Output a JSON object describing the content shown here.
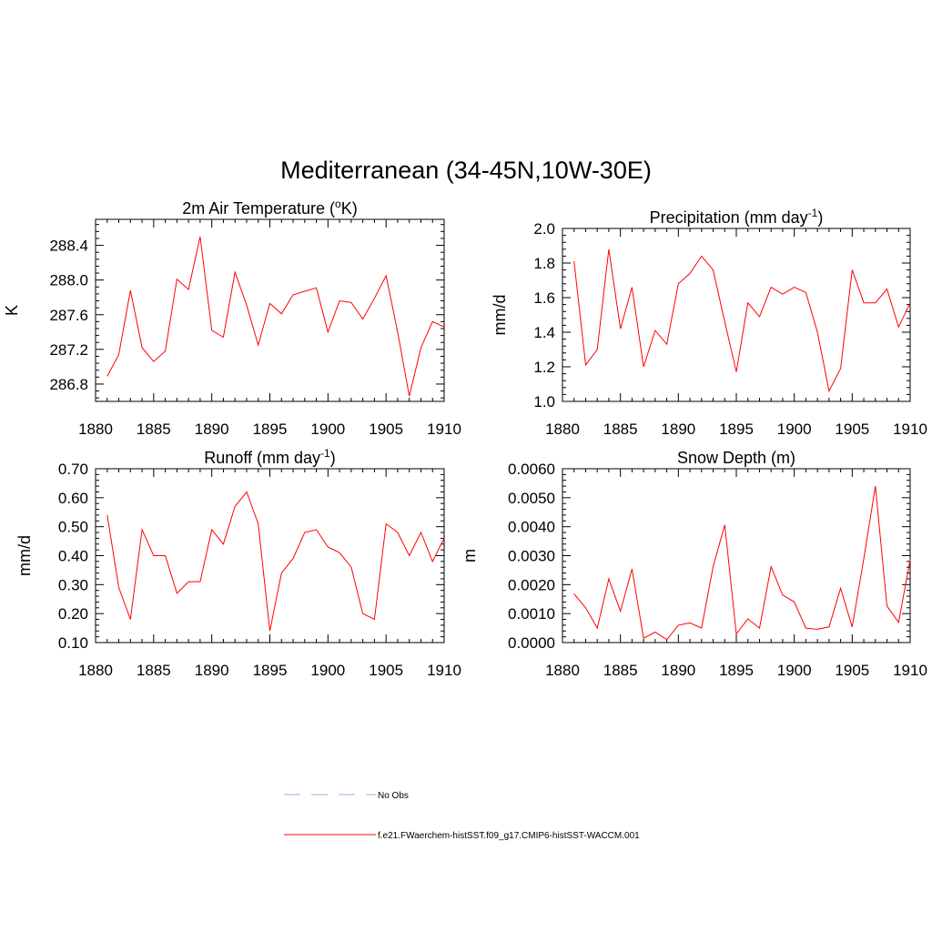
{
  "figure": {
    "title": "Mediterranean (34-45N,10W-30E)"
  },
  "legend": {
    "placement": "bottom-center",
    "items": [
      {
        "label": "No Obs",
        "color": "#a9a9e0",
        "style": "dashed"
      },
      {
        "label": "f.e21.FWaerchem-histSST.f09_g17.CMIP6-histSST-WACCM.001",
        "color": "#ff0000",
        "style": "solid"
      }
    ]
  },
  "chart_data": [
    {
      "type": "line",
      "title": "2m Air Temperature (",
      "title_sup": "o",
      "title_tail": "K)",
      "ylabel": "K",
      "xlim": [
        1880,
        1910
      ],
      "ylim": [
        286.6,
        288.7
      ],
      "xticks": [
        "1880",
        "1885",
        "1890",
        "1895",
        "1900",
        "1905",
        "1910"
      ],
      "yticks": [
        "286.8",
        "287.2",
        "287.6",
        "288.0",
        "288.4"
      ],
      "series": [
        {
          "color": "#ff0000",
          "x": [
            1881,
            1882,
            1883,
            1884,
            1885,
            1886,
            1887,
            1888,
            1889,
            1890,
            1891,
            1892,
            1893,
            1894,
            1895,
            1896,
            1897,
            1898,
            1899,
            1900,
            1901,
            1902,
            1903,
            1904,
            1905,
            1906,
            1907,
            1908,
            1909,
            1910
          ],
          "y": [
            286.89,
            287.14,
            287.88,
            287.22,
            287.06,
            287.18,
            288.01,
            287.89,
            288.5,
            287.42,
            287.34,
            288.09,
            287.71,
            287.25,
            287.73,
            287.61,
            287.83,
            287.87,
            287.91,
            287.4,
            287.76,
            287.74,
            287.55,
            287.79,
            288.05,
            287.4,
            286.66,
            287.22,
            287.52,
            287.46
          ]
        }
      ]
    },
    {
      "type": "line",
      "title": "Precipitation (mm day",
      "title_sup": "-1",
      "title_tail": ")",
      "ylabel": "mm/d",
      "xlim": [
        1880,
        1910
      ],
      "ylim": [
        1.0,
        2.0
      ],
      "xticks": [
        "1880",
        "1885",
        "1890",
        "1895",
        "1900",
        "1905",
        "1910"
      ],
      "yticks": [
        "1.0",
        "1.2",
        "1.4",
        "1.6",
        "1.8",
        "2.0"
      ],
      "series": [
        {
          "color": "#ff0000",
          "x": [
            1881,
            1882,
            1883,
            1884,
            1885,
            1886,
            1887,
            1888,
            1889,
            1890,
            1891,
            1892,
            1893,
            1894,
            1895,
            1896,
            1897,
            1898,
            1899,
            1900,
            1901,
            1902,
            1903,
            1904,
            1905,
            1906,
            1907,
            1908,
            1909,
            1910
          ],
          "y": [
            1.81,
            1.21,
            1.3,
            1.88,
            1.42,
            1.66,
            1.2,
            1.41,
            1.33,
            1.68,
            1.74,
            1.84,
            1.76,
            1.46,
            1.17,
            1.57,
            1.49,
            1.66,
            1.62,
            1.66,
            1.63,
            1.4,
            1.06,
            1.19,
            1.76,
            1.57,
            1.57,
            1.65,
            1.43,
            1.57
          ]
        }
      ]
    },
    {
      "type": "line",
      "title": "Runoff (mm day",
      "title_sup": "-1",
      "title_tail": ")",
      "ylabel": "mm/d",
      "xlim": [
        1880,
        1910
      ],
      "ylim": [
        0.1,
        0.7
      ],
      "xticks": [
        "1880",
        "1885",
        "1890",
        "1895",
        "1900",
        "1905",
        "1910"
      ],
      "yticks": [
        "0.10",
        "0.20",
        "0.30",
        "0.40",
        "0.50",
        "0.60",
        "0.70"
      ],
      "series": [
        {
          "color": "#ff0000",
          "x": [
            1881,
            1882,
            1883,
            1884,
            1885,
            1886,
            1887,
            1888,
            1889,
            1890,
            1891,
            1892,
            1893,
            1894,
            1895,
            1896,
            1897,
            1898,
            1899,
            1900,
            1901,
            1902,
            1903,
            1904,
            1905,
            1906,
            1907,
            1908,
            1909,
            1910
          ],
          "y": [
            0.54,
            0.29,
            0.18,
            0.49,
            0.4,
            0.4,
            0.27,
            0.31,
            0.31,
            0.49,
            0.44,
            0.57,
            0.62,
            0.51,
            0.14,
            0.34,
            0.39,
            0.48,
            0.49,
            0.43,
            0.41,
            0.36,
            0.2,
            0.18,
            0.51,
            0.48,
            0.4,
            0.48,
            0.38,
            0.46
          ]
        }
      ]
    },
    {
      "type": "line",
      "title": "Snow Depth (m)",
      "title_sup": "",
      "title_tail": "",
      "ylabel": "m",
      "xlim": [
        1880,
        1910
      ],
      "ylim": [
        0.0,
        0.006
      ],
      "xticks": [
        "1880",
        "1885",
        "1890",
        "1895",
        "1900",
        "1905",
        "1910"
      ],
      "yticks": [
        "0.0000",
        "0.0010",
        "0.0020",
        "0.0030",
        "0.0040",
        "0.0050",
        "0.0060"
      ],
      "series": [
        {
          "color": "#ff0000",
          "x": [
            1881,
            1882,
            1883,
            1884,
            1885,
            1886,
            1887,
            1888,
            1889,
            1890,
            1891,
            1892,
            1893,
            1894,
            1895,
            1896,
            1897,
            1898,
            1899,
            1900,
            1901,
            1902,
            1903,
            1904,
            1905,
            1906,
            1907,
            1908,
            1909,
            1910
          ],
          "y": [
            0.00168,
            0.0012,
            0.0005,
            0.0022,
            0.00108,
            0.00254,
            0.00015,
            0.00036,
            0.0001,
            0.0006,
            0.00068,
            0.0005,
            0.00262,
            0.00406,
            0.0003,
            0.00082,
            0.0005,
            0.00262,
            0.00164,
            0.0014,
            0.0005,
            0.00046,
            0.00054,
            0.00188,
            0.00054,
            0.0029,
            0.0054,
            0.00126,
            0.0007,
            0.00286
          ]
        }
      ]
    }
  ]
}
